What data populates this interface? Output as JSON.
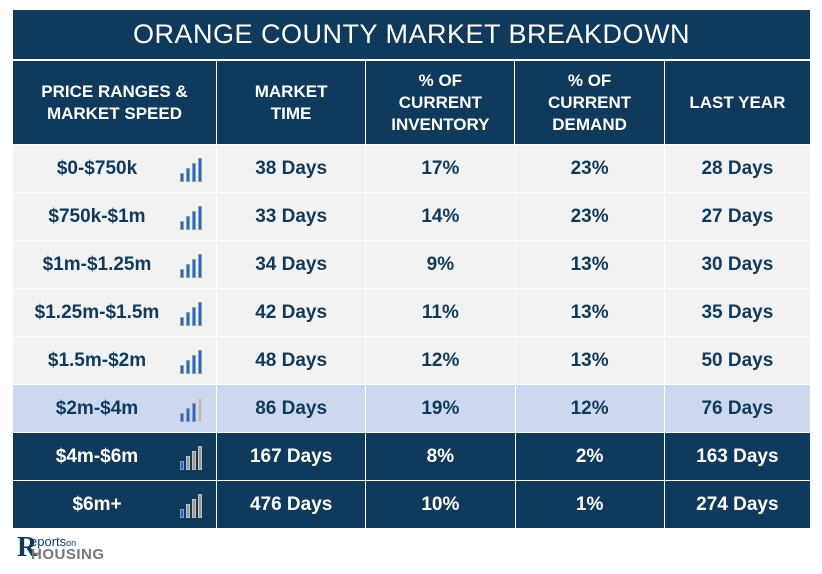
{
  "title": "ORANGE COUNTY MARKET BREAKDOWN",
  "headers": [
    "PRICE RANGES &\nMARKET SPEED",
    "MARKET\nTIME",
    "% OF\nCURRENT\nINVENTORY",
    "% OF\nCURRENT\nDEMAND",
    "LAST YEAR"
  ],
  "rows": [
    {
      "range": "$0-$750k",
      "market_time": "38 Days",
      "inventory": "17%",
      "demand": "23%",
      "last_year": "28 Days",
      "speed_icon": "bar-chart-icon",
      "style": "light"
    },
    {
      "range": "$750k-$1m",
      "market_time": "33 Days",
      "inventory": "14%",
      "demand": "23%",
      "last_year": "27 Days",
      "speed_icon": "bar-chart-icon",
      "style": "light"
    },
    {
      "range": "$1m-$1.25m",
      "market_time": "34 Days",
      "inventory": "9%",
      "demand": "13%",
      "last_year": "30 Days",
      "speed_icon": "bar-chart-icon",
      "style": "light"
    },
    {
      "range": "$1.25m-$1.5m",
      "market_time": "42 Days",
      "inventory": "11%",
      "demand": "13%",
      "last_year": "35 Days",
      "speed_icon": "bar-chart-icon",
      "style": "light"
    },
    {
      "range": "$1.5m-$2m",
      "market_time": "48 Days",
      "inventory": "12%",
      "demand": "13%",
      "last_year": "50 Days",
      "speed_icon": "bar-chart-icon",
      "style": "light"
    },
    {
      "range": "$2m-$4m",
      "market_time": "86 Days",
      "inventory": "19%",
      "demand": "12%",
      "last_year": "76 Days",
      "speed_icon": "bar-chart-icon",
      "style": "highlight"
    },
    {
      "range": "$4m-$6m",
      "market_time": "167 Days",
      "inventory": "8%",
      "demand": "2%",
      "last_year": "163 Days",
      "speed_icon": "bar-chart-icon",
      "style": "dark"
    },
    {
      "range": "$6m+",
      "market_time": "476 Days",
      "inventory": "10%",
      "demand": "1%",
      "last_year": "274 Days",
      "speed_icon": "bar-chart-icon",
      "style": "dark"
    }
  ],
  "speed_levels": [
    4,
    4,
    4,
    4,
    4,
    3,
    1,
    1
  ],
  "colors": {
    "navy": "#0f3a5c",
    "bar_blue": "#2e66b0",
    "bar_gray": "#9a9a9a"
  },
  "logo": {
    "initial": "R",
    "line1": "eports",
    "line1_small": "on",
    "line2": "HOUSING"
  }
}
